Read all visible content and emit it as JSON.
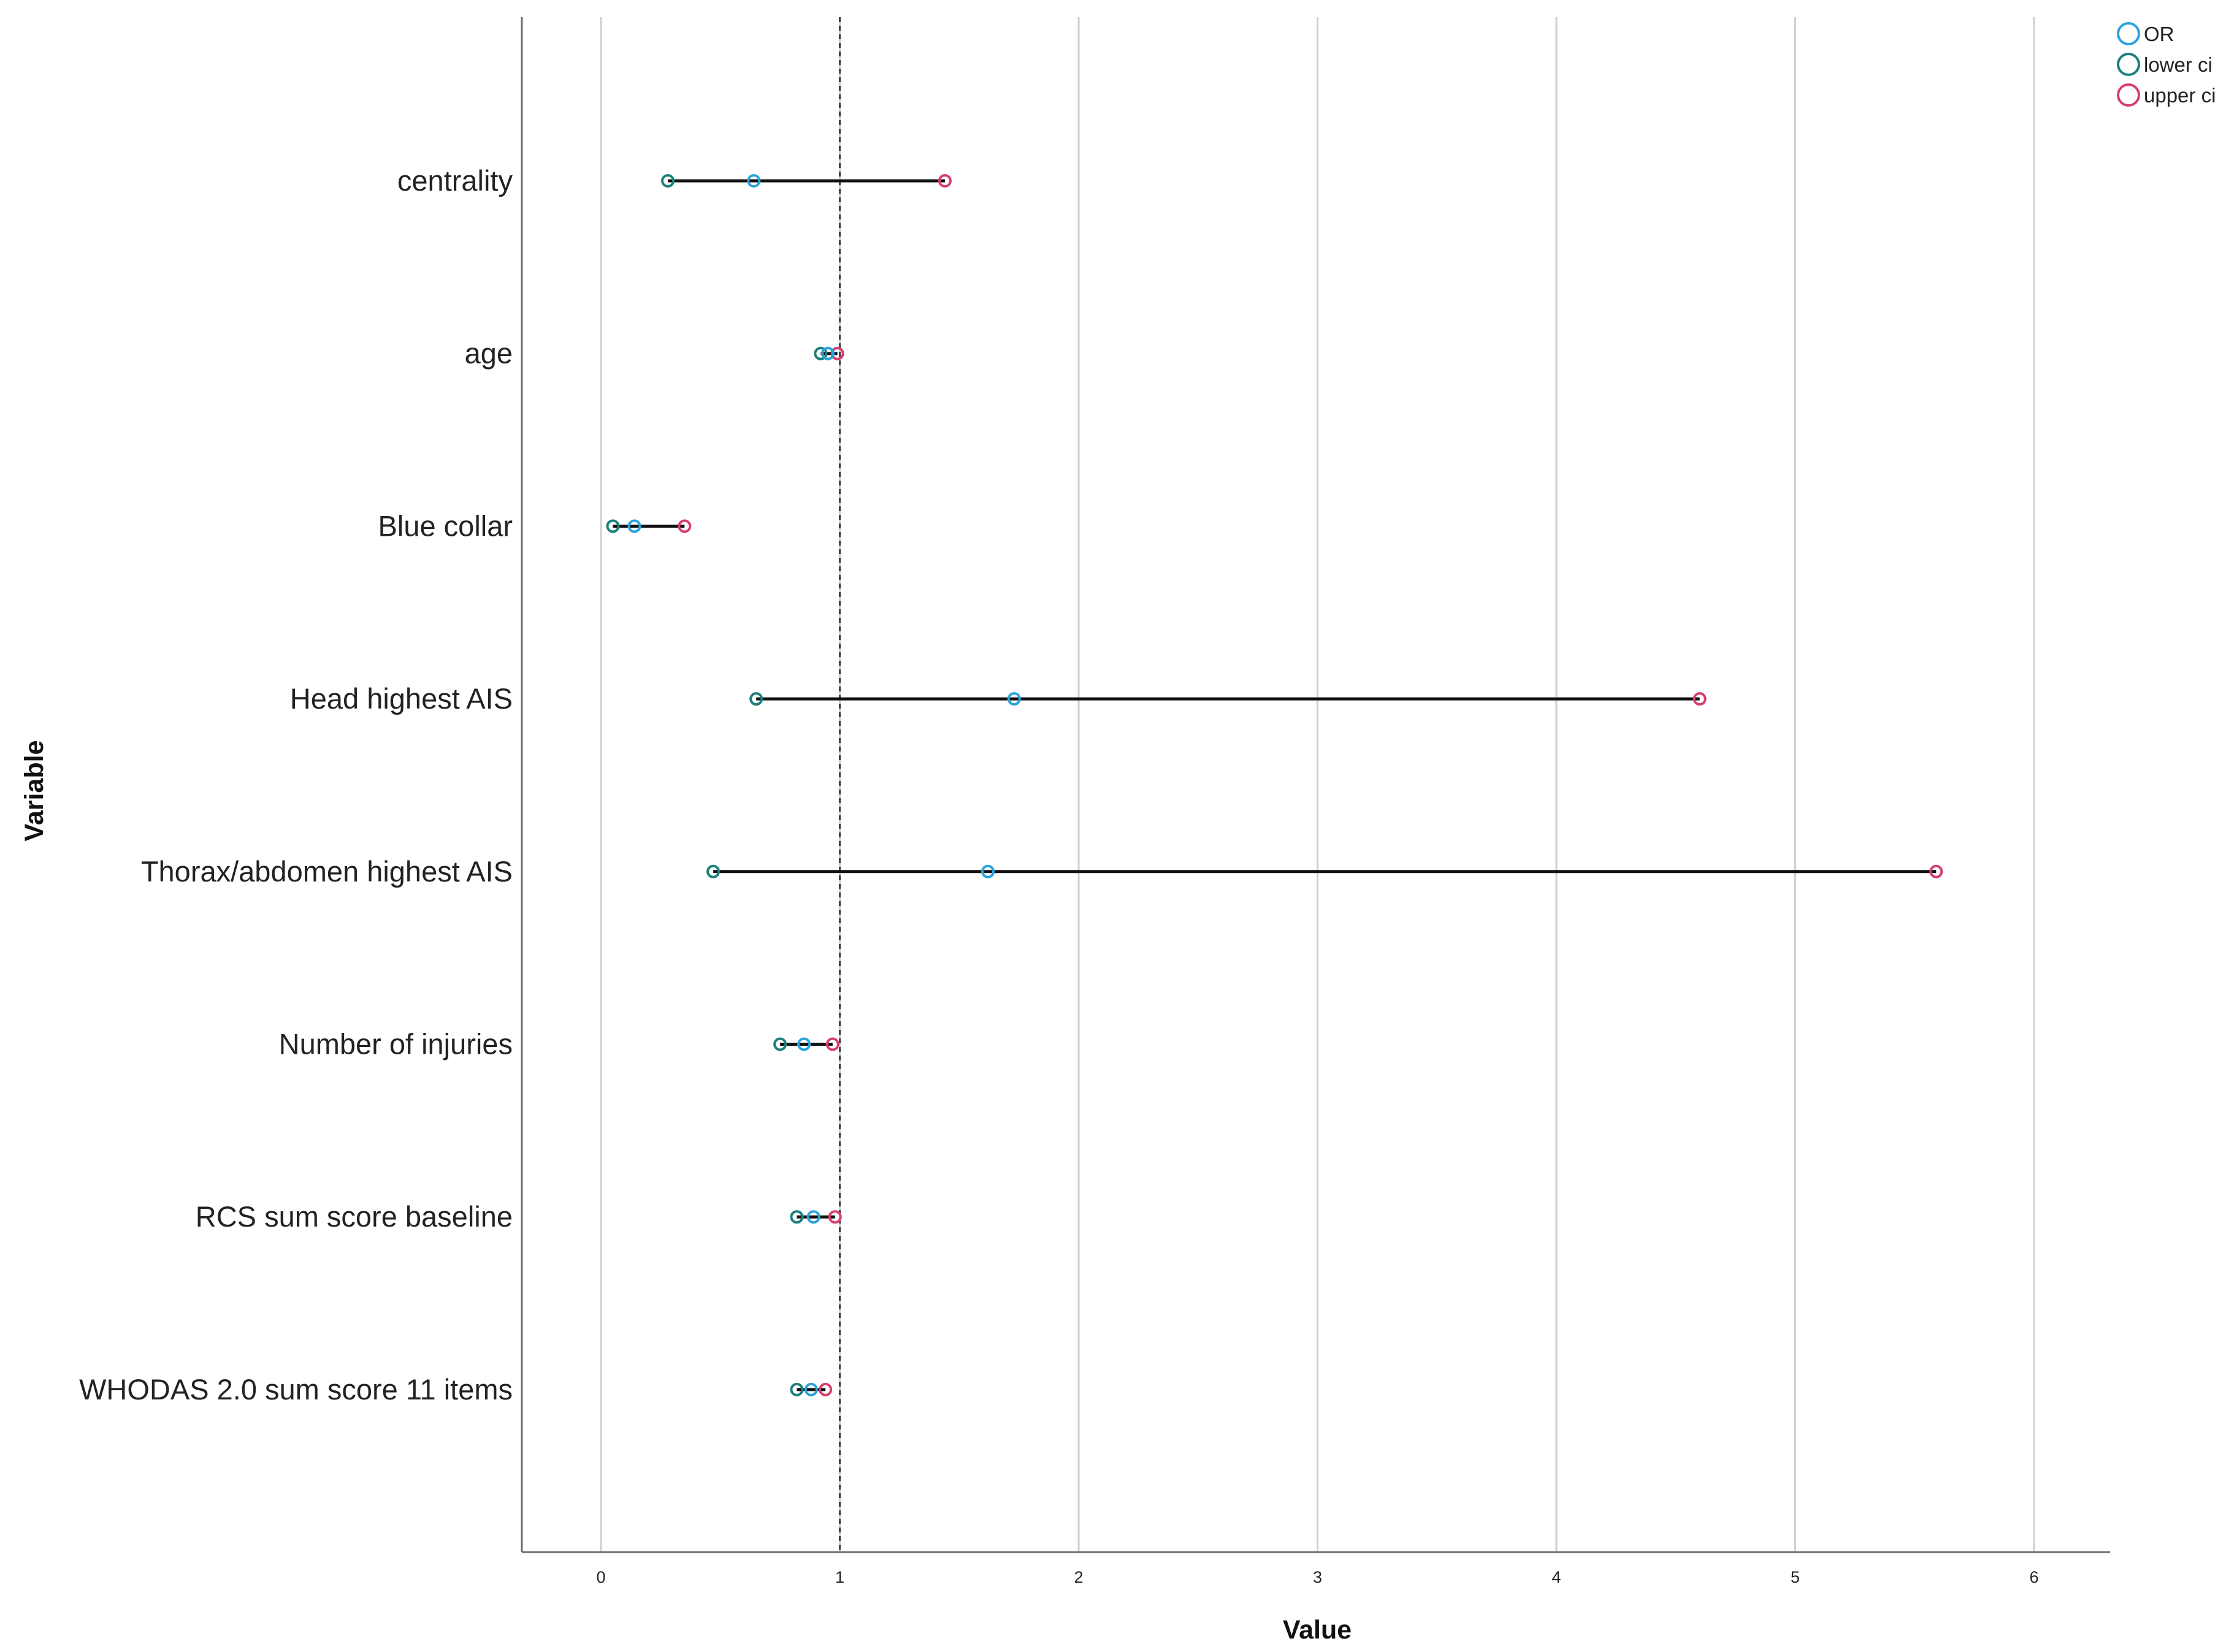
{
  "chart_data": {
    "type": "scatter",
    "xlabel": "Value",
    "ylabel": "Variable",
    "xlim": [
      -0.33,
      6.33
    ],
    "xticks": [
      0,
      1,
      2,
      3,
      4,
      5,
      6
    ],
    "reference_line_x": 1,
    "grid": "vertical",
    "legend_position": "top-right",
    "categories": [
      "centrality",
      "age",
      "Blue collar",
      "Head highest AIS",
      "Thorax/abdomen highest AIS",
      "Number of injuries",
      "RCS sum score baseline",
      "WHODAS 2.0 sum score 11 items"
    ],
    "series": [
      {
        "name": "OR",
        "color": "#29a3dc",
        "values": [
          0.64,
          0.95,
          0.14,
          1.73,
          1.62,
          0.85,
          0.89,
          0.88
        ]
      },
      {
        "name": "lower ci",
        "color": "#1b7f7a",
        "values": [
          0.28,
          0.92,
          0.05,
          0.65,
          0.47,
          0.75,
          0.82,
          0.82
        ]
      },
      {
        "name": "upper ci",
        "color": "#d63e6e",
        "values": [
          1.44,
          0.99,
          0.35,
          4.6,
          5.59,
          0.97,
          0.98,
          0.94
        ]
      }
    ]
  }
}
